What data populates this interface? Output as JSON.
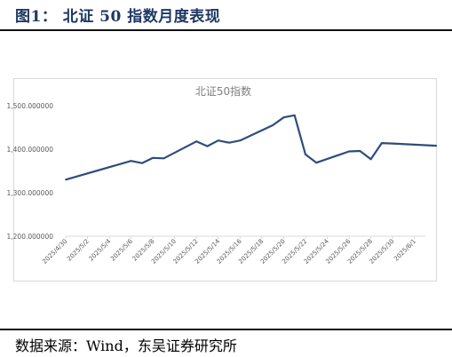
{
  "figure_title": "图1：  北证 50 指数月度表现",
  "source_note": "数据来源：Wind，东吴证券研究所",
  "chart_data": {
    "type": "line",
    "title": "北证50指数",
    "xlabel": "",
    "ylabel": "",
    "ylim": [
      1200,
      1500
    ],
    "yticks": [
      1200,
      1300,
      1400,
      1500
    ],
    "ytick_labels": [
      "1,200.000000",
      "1,300.000000",
      "1,400.000000",
      "1,500.000000"
    ],
    "x_tick_labels": [
      "2025/4/30",
      "2025/5/2",
      "2025/5/4",
      "2025/5/6",
      "2025/5/8",
      "2025/5/10",
      "2025/5/12",
      "2025/5/14",
      "2025/5/16",
      "2025/5/18",
      "2025/5/20",
      "2025/5/22",
      "2025/5/24",
      "2025/5/26",
      "2025/5/28",
      "2025/5/30",
      "2025/6/1"
    ],
    "x": [
      "2025/4/30",
      "2025/5/6",
      "2025/5/7",
      "2025/5/8",
      "2025/5/9",
      "2025/5/12",
      "2025/5/13",
      "2025/5/14",
      "2025/5/15",
      "2025/5/16",
      "2025/5/19",
      "2025/5/20",
      "2025/5/21",
      "2025/5/22",
      "2025/5/23",
      "2025/5/26",
      "2025/5/27",
      "2025/5/28",
      "2025/5/29",
      "2025/5/30",
      "2025/6/3"
    ],
    "series": [
      {
        "values": [
          1330,
          1373,
          1368,
          1380,
          1379,
          1418,
          1407,
          1420,
          1415,
          1420,
          1455,
          1473,
          1478,
          1388,
          1369,
          1395,
          1396,
          1377,
          1414,
          1413,
          1408
        ]
      }
    ],
    "line_color": "#2e4d7b",
    "grid": false,
    "legend": "none"
  }
}
